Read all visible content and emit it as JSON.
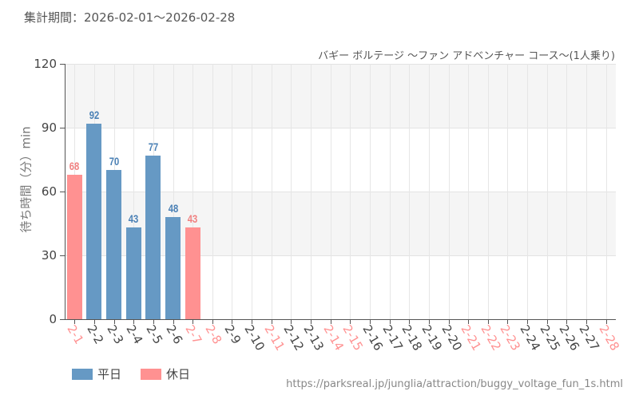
{
  "header": {
    "period_label": "集計期間：2026-02-01〜2026-02-28"
  },
  "footer": {
    "source_url": "https://parksreal.jp/junglia/attraction/buggy_voltage_fun_1s.html"
  },
  "colors": {
    "weekday": "#6699c4",
    "holiday": "#ff9191",
    "weekday_text": "#4a80b5",
    "holiday_text": "#f08080",
    "band": "#f5f5f5"
  },
  "legend": [
    {
      "label": "平日",
      "color": "#6699c4"
    },
    {
      "label": "休日",
      "color": "#ff9191"
    }
  ],
  "chart_data": {
    "type": "bar",
    "title": "バギー ボルテージ 〜ファン アドベンチャー コース〜(1人乗り)",
    "xlabel": "",
    "ylabel": "待ち時間（分）min",
    "ylim": [
      0,
      120
    ],
    "yticks": [
      0,
      30,
      60,
      90,
      120
    ],
    "grid": true,
    "legend_position": "bottom-left",
    "categories": [
      "2-1",
      "2-2",
      "2-3",
      "2-4",
      "2-5",
      "2-6",
      "2-7",
      "2-8",
      "2-9",
      "2-10",
      "2-11",
      "2-12",
      "2-13",
      "2-14",
      "2-15",
      "2-16",
      "2-17",
      "2-18",
      "2-19",
      "2-20",
      "2-21",
      "2-22",
      "2-23",
      "2-24",
      "2-25",
      "2-26",
      "2-27",
      "2-28"
    ],
    "holidays": [
      "2-1",
      "2-7",
      "2-8",
      "2-11",
      "2-14",
      "2-15",
      "2-21",
      "2-22",
      "2-23",
      "2-28"
    ],
    "values": [
      68,
      92,
      70,
      43,
      77,
      48,
      43,
      null,
      null,
      null,
      null,
      null,
      null,
      null,
      null,
      null,
      null,
      null,
      null,
      null,
      null,
      null,
      null,
      null,
      null,
      null,
      null,
      null
    ],
    "series": [
      {
        "name": "平日",
        "values": [
          null,
          92,
          70,
          43,
          77,
          48,
          null
        ]
      },
      {
        "name": "休日",
        "values": [
          68,
          null,
          null,
          null,
          null,
          null,
          43
        ]
      }
    ]
  }
}
